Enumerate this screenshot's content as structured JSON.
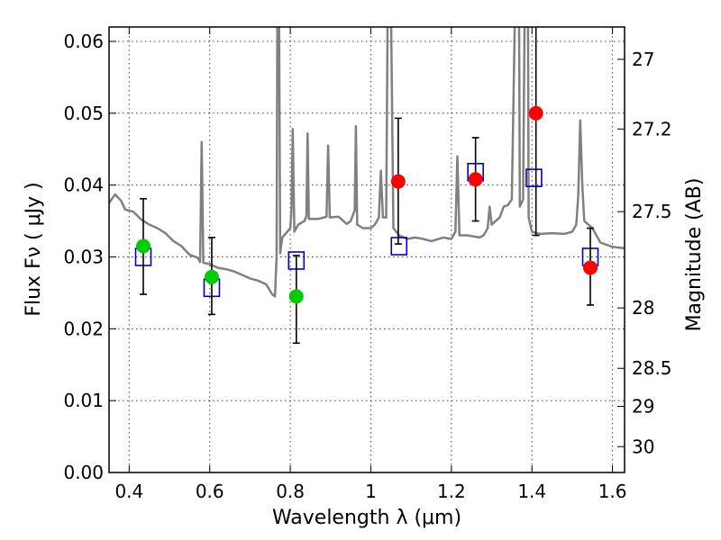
{
  "chart_data": {
    "type": "scatter",
    "xlabel": "Wavelength  λ (μm)",
    "ylabel": "Flux  Fν  ( μJy )",
    "y2label": "Magnitude (AB)",
    "xlim": [
      0.35,
      1.63
    ],
    "ylim": [
      0.0,
      0.062
    ],
    "grid": true,
    "x_ticks": [
      {
        "value": 0.4,
        "label": "0.4"
      },
      {
        "value": 0.6,
        "label": "0.6"
      },
      {
        "value": 0.8,
        "label": "0.8"
      },
      {
        "value": 1.0,
        "label": "1"
      },
      {
        "value": 1.2,
        "label": "1.2"
      },
      {
        "value": 1.4,
        "label": "1.4"
      },
      {
        "value": 1.6,
        "label": "1.6"
      }
    ],
    "y_ticks": [
      {
        "value": 0.0,
        "label": "0.00"
      },
      {
        "value": 0.01,
        "label": "0.01"
      },
      {
        "value": 0.02,
        "label": "0.02"
      },
      {
        "value": 0.03,
        "label": "0.03"
      },
      {
        "value": 0.04,
        "label": "0.04"
      },
      {
        "value": 0.05,
        "label": "0.05"
      },
      {
        "value": 0.06,
        "label": "0.06"
      }
    ],
    "y2_ticks": [
      {
        "flux": 0.0575,
        "label": "27"
      },
      {
        "flux": 0.0478,
        "label": "27.2"
      },
      {
        "flux": 0.0363,
        "label": "27.5"
      },
      {
        "flux": 0.0229,
        "label": "28"
      },
      {
        "flux": 0.0145,
        "label": "28.5"
      },
      {
        "flux": 0.0092,
        "label": "29"
      },
      {
        "flux": 0.0036,
        "label": "30"
      }
    ],
    "series": [
      {
        "kind": "template_spectrum",
        "color": "#808080",
        "points": [
          [
            0.35,
            0.0375
          ],
          [
            0.365,
            0.0387
          ],
          [
            0.38,
            0.0378
          ],
          [
            0.39,
            0.0366
          ],
          [
            0.41,
            0.0363
          ],
          [
            0.43,
            0.0352
          ],
          [
            0.45,
            0.0345
          ],
          [
            0.47,
            0.034
          ],
          [
            0.49,
            0.0333
          ],
          [
            0.51,
            0.0322
          ],
          [
            0.53,
            0.0315
          ],
          [
            0.55,
            0.0303
          ],
          [
            0.57,
            0.0299
          ],
          [
            0.576,
            0.0293
          ],
          [
            0.58,
            0.046
          ],
          [
            0.584,
            0.0292
          ],
          [
            0.6,
            0.029
          ],
          [
            0.62,
            0.0285
          ],
          [
            0.64,
            0.0283
          ],
          [
            0.66,
            0.028
          ],
          [
            0.68,
            0.0275
          ],
          [
            0.7,
            0.027
          ],
          [
            0.72,
            0.0267
          ],
          [
            0.74,
            0.0262
          ],
          [
            0.755,
            0.0248
          ],
          [
            0.762,
            0.0245
          ],
          [
            0.766,
            0.03
          ],
          [
            0.768,
            0.065
          ],
          [
            0.772,
            0.065
          ],
          [
            0.775,
            0.0305
          ],
          [
            0.78,
            0.0327
          ],
          [
            0.8,
            0.034
          ],
          [
            0.803,
            0.0365
          ],
          [
            0.806,
            0.0478
          ],
          [
            0.81,
            0.0335
          ],
          [
            0.82,
            0.0345
          ],
          [
            0.835,
            0.035
          ],
          [
            0.84,
            0.0357
          ],
          [
            0.843,
            0.0472
          ],
          [
            0.846,
            0.0353
          ],
          [
            0.87,
            0.0353
          ],
          [
            0.89,
            0.0356
          ],
          [
            0.894,
            0.0455
          ],
          [
            0.898,
            0.0355
          ],
          [
            0.92,
            0.0356
          ],
          [
            0.94,
            0.0346
          ],
          [
            0.95,
            0.035
          ],
          [
            0.96,
            0.0365
          ],
          [
            0.963,
            0.0482
          ],
          [
            0.966,
            0.0345
          ],
          [
            0.98,
            0.034
          ],
          [
            1.0,
            0.034
          ],
          [
            1.01,
            0.0345
          ],
          [
            1.02,
            0.0355
          ],
          [
            1.025,
            0.042
          ],
          [
            1.03,
            0.0355
          ],
          [
            1.038,
            0.0355
          ],
          [
            1.042,
            0.065
          ],
          [
            1.05,
            0.065
          ],
          [
            1.056,
            0.034
          ],
          [
            1.07,
            0.033
          ],
          [
            1.09,
            0.0325
          ],
          [
            1.11,
            0.0327
          ],
          [
            1.13,
            0.0325
          ],
          [
            1.15,
            0.0322
          ],
          [
            1.18,
            0.0327
          ],
          [
            1.2,
            0.0325
          ],
          [
            1.21,
            0.0335
          ],
          [
            1.215,
            0.044
          ],
          [
            1.22,
            0.033
          ],
          [
            1.24,
            0.033
          ],
          [
            1.27,
            0.0327
          ],
          [
            1.28,
            0.033
          ],
          [
            1.29,
            0.034
          ],
          [
            1.295,
            0.037
          ],
          [
            1.3,
            0.0345
          ],
          [
            1.31,
            0.035
          ],
          [
            1.32,
            0.0355
          ],
          [
            1.33,
            0.037
          ],
          [
            1.34,
            0.0372
          ],
          [
            1.35,
            0.038
          ],
          [
            1.358,
            0.065
          ],
          [
            1.368,
            0.065
          ],
          [
            1.37,
            0.037
          ],
          [
            1.378,
            0.038
          ],
          [
            1.382,
            0.065
          ],
          [
            1.39,
            0.065
          ],
          [
            1.392,
            0.0355
          ],
          [
            1.4,
            0.0335
          ],
          [
            1.42,
            0.0332
          ],
          [
            1.45,
            0.0333
          ],
          [
            1.48,
            0.0332
          ],
          [
            1.5,
            0.0335
          ],
          [
            1.51,
            0.0345
          ],
          [
            1.515,
            0.0385
          ],
          [
            1.52,
            0.049
          ],
          [
            1.525,
            0.04
          ],
          [
            1.53,
            0.035
          ],
          [
            1.55,
            0.034
          ],
          [
            1.57,
            0.032
          ],
          [
            1.6,
            0.0314
          ],
          [
            1.63,
            0.0312
          ]
        ]
      },
      {
        "kind": "model_boxes",
        "color": "#0000cc",
        "points": [
          {
            "x": 0.435,
            "y": 0.03
          },
          {
            "x": 0.605,
            "y": 0.0257
          },
          {
            "x": 0.815,
            "y": 0.0295
          },
          {
            "x": 1.07,
            "y": 0.0315
          },
          {
            "x": 1.26,
            "y": 0.0418
          },
          {
            "x": 1.405,
            "y": 0.041
          },
          {
            "x": 1.545,
            "y": 0.03
          }
        ]
      },
      {
        "kind": "observed_optical",
        "color": "#00cc00",
        "points": [
          {
            "x": 0.435,
            "y": 0.0315,
            "err_lo": 0.0248,
            "err_hi": 0.0381
          },
          {
            "x": 0.605,
            "y": 0.0272,
            "err_lo": 0.022,
            "err_hi": 0.0327
          },
          {
            "x": 0.815,
            "y": 0.0245,
            "err_lo": 0.018,
            "err_hi": 0.0302
          }
        ]
      },
      {
        "kind": "observed_ir",
        "color": "#ff0000",
        "points": [
          {
            "x": 1.068,
            "y": 0.0405,
            "err_lo": 0.0318,
            "err_hi": 0.0493
          },
          {
            "x": 1.26,
            "y": 0.0408,
            "err_lo": 0.035,
            "err_hi": 0.0466
          },
          {
            "x": 1.41,
            "y": 0.05,
            "err_lo": 0.033,
            "err_hi": 0.065
          },
          {
            "x": 1.545,
            "y": 0.0285,
            "err_lo": 0.0233,
            "err_hi": 0.034
          }
        ]
      }
    ]
  }
}
